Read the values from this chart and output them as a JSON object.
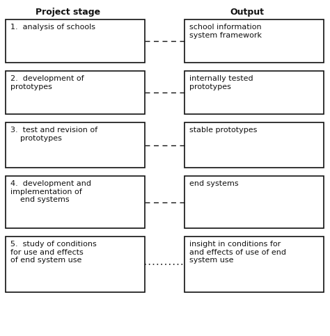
{
  "title_left": "Project stage",
  "title_right": "Output",
  "stages": [
    {
      "left_text": "1.  analysis of schools",
      "right_text": "school information\nsystem framework",
      "dash_style": "normal"
    },
    {
      "left_text": "2.  development of\nprototypes",
      "right_text": "internally tested\nprototypes",
      "dash_style": "normal"
    },
    {
      "left_text": "3.  test and revision of\n    prototypes",
      "right_text": "stable prototypes",
      "dash_style": "normal"
    },
    {
      "left_text": "4.  development and\nimplementation of\n    end systems",
      "right_text": "end systems",
      "dash_style": "normal"
    },
    {
      "left_text": "5.  study of conditions\nfor use and effects\nof end system use",
      "right_text": "insight in conditions for\nand effects of use of end\nsystem use",
      "dash_style": "dotted"
    }
  ],
  "bg_color": "#ffffff",
  "box_edge_color": "#111111",
  "text_color": "#111111",
  "line_color": "#111111",
  "title_fontsize": 9,
  "text_fontsize": 8,
  "fig_width": 4.74,
  "fig_height": 4.83,
  "dpi": 100
}
